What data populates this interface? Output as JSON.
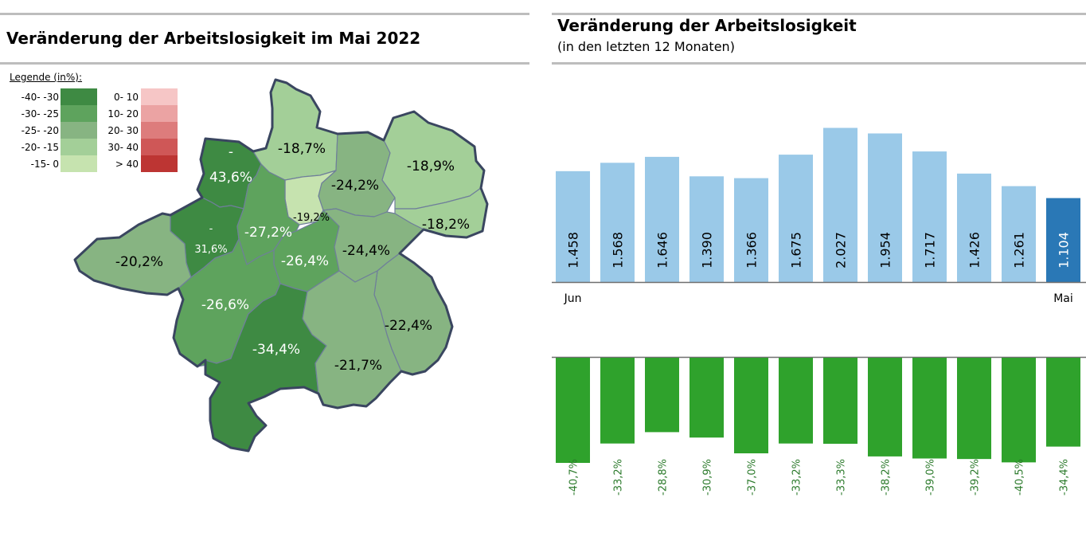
{
  "left": {
    "title": "Veränderung der Arbeitslosigkeit im Mai 2022",
    "legend": {
      "title": "Legende (in%):",
      "decrease": [
        {
          "label": "-40- -30",
          "color": "#3e8a43"
        },
        {
          "label": "-30- -25",
          "color": "#5ea35d"
        },
        {
          "label": "-25- -20",
          "color": "#87b482"
        },
        {
          "label": "-20- -15",
          "color": "#a3cf98"
        },
        {
          "label": "-15- 0",
          "color": "#c6e3af"
        }
      ],
      "increase": [
        {
          "label": "0- 10",
          "color": "#f6c6c6"
        },
        {
          "label": "10- 20",
          "color": "#eba3a3"
        },
        {
          "label": "20- 30",
          "color": "#dd7c7c"
        },
        {
          "label": "30- 40",
          "color": "#cf5757"
        },
        {
          "label": "> 40",
          "color": "#bd3533"
        }
      ]
    },
    "map_labels": [
      {
        "dash": "-",
        "value": "43,6%"
      },
      {
        "value": "-18,7%"
      },
      {
        "value": "-24,2%"
      },
      {
        "value": "-18,9%"
      },
      {
        "value": "-19,2%"
      },
      {
        "value": "-18,2%"
      },
      {
        "dash": "-",
        "value": "31,6%"
      },
      {
        "value": "-27,2%"
      },
      {
        "value": "-20,2%"
      },
      {
        "value": "-26,4%"
      },
      {
        "value": "-24,4%"
      },
      {
        "value": "-26,6%"
      },
      {
        "value": "-22,4%"
      },
      {
        "value": "-34,4%"
      },
      {
        "value": "-21,7%"
      }
    ]
  },
  "right": {
    "title": "Veränderung der Arbeitslosigkeit",
    "subtitle": "(in den letzten 12 Monaten)"
  },
  "chart_data": [
    {
      "type": "bar",
      "title": "Veränderung der Arbeitslosigkeit",
      "subtitle": "(in den letzten 12 Monaten)",
      "categories": [
        "Jun",
        "",
        "",
        "",
        "",
        "",
        "",
        "",
        "",
        "",
        "",
        "Mai"
      ],
      "values": [
        1458,
        1568,
        1646,
        1390,
        1366,
        1675,
        2027,
        1954,
        1717,
        1426,
        1261,
        1104
      ],
      "value_labels": [
        "1.458",
        "1.568",
        "1.646",
        "1.390",
        "1.366",
        "1.675",
        "2.027",
        "1.954",
        "1.717",
        "1.426",
        "1.261",
        "1.104"
      ],
      "colors": {
        "bar": "#9ac9e8",
        "highlight": "#2a78b6"
      },
      "ylim": [
        0,
        2200
      ],
      "grid": false
    },
    {
      "type": "bar",
      "categories": [
        "Jun",
        "",
        "",
        "",
        "",
        "",
        "",
        "",
        "",
        "",
        "",
        "Mai"
      ],
      "values": [
        -40.7,
        -33.2,
        -28.8,
        -30.9,
        -37.0,
        -33.2,
        -33.3,
        -38.2,
        -39.0,
        -39.2,
        -40.5,
        -34.4
      ],
      "value_labels": [
        "-40,7%",
        "-33,2%",
        "-28,8%",
        "-30,9%",
        "-37,0%",
        "-33,2%",
        "-33,3%",
        "-38,2%",
        "-39,0%",
        "-39,2%",
        "-40,5%",
        "-34,4%"
      ],
      "colors": {
        "bar": "#2fa22c",
        "label": "#2b7a2b"
      },
      "ylim": [
        -40.7,
        0
      ],
      "grid": false
    }
  ]
}
